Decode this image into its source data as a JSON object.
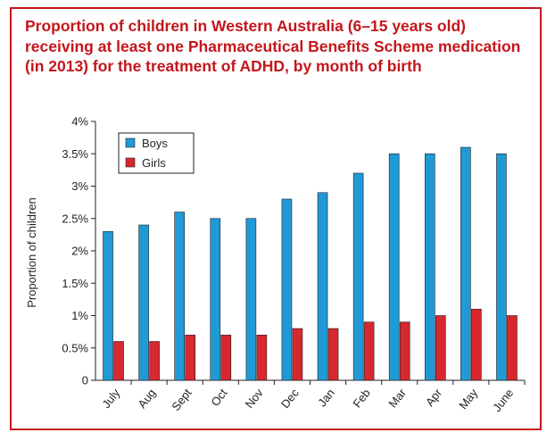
{
  "chart_data": {
    "type": "bar",
    "title": "Proportion of children in Western Australia (6–15 years old) receiving at least one Pharmaceutical Benefits Scheme medication (in 2013) for the treatment of ADHD, by month of birth",
    "xlabel": "",
    "ylabel": "Proportion of children",
    "categories": [
      "July",
      "Aug",
      "Sept",
      "Oct",
      "Nov",
      "Dec",
      "Jan",
      "Feb",
      "Mar",
      "Apr",
      "May",
      "June"
    ],
    "series": [
      {
        "name": "Boys",
        "color": "#1f9ad6",
        "values": [
          2.3,
          2.4,
          2.6,
          2.5,
          2.5,
          2.8,
          2.9,
          3.2,
          3.5,
          3.5,
          3.6,
          3.5
        ]
      },
      {
        "name": "Girls",
        "color": "#d6282e",
        "values": [
          0.6,
          0.6,
          0.7,
          0.7,
          0.7,
          0.8,
          0.8,
          0.9,
          0.9,
          1.0,
          1.1,
          1.0
        ]
      }
    ],
    "ylim": [
      0,
      4
    ],
    "yticks": [
      "0",
      "0.5%",
      "1%",
      "1.5%",
      "2%",
      "2.5%",
      "3%",
      "3.5%",
      "4%"
    ],
    "legend_position": "top-left",
    "grid": false
  }
}
